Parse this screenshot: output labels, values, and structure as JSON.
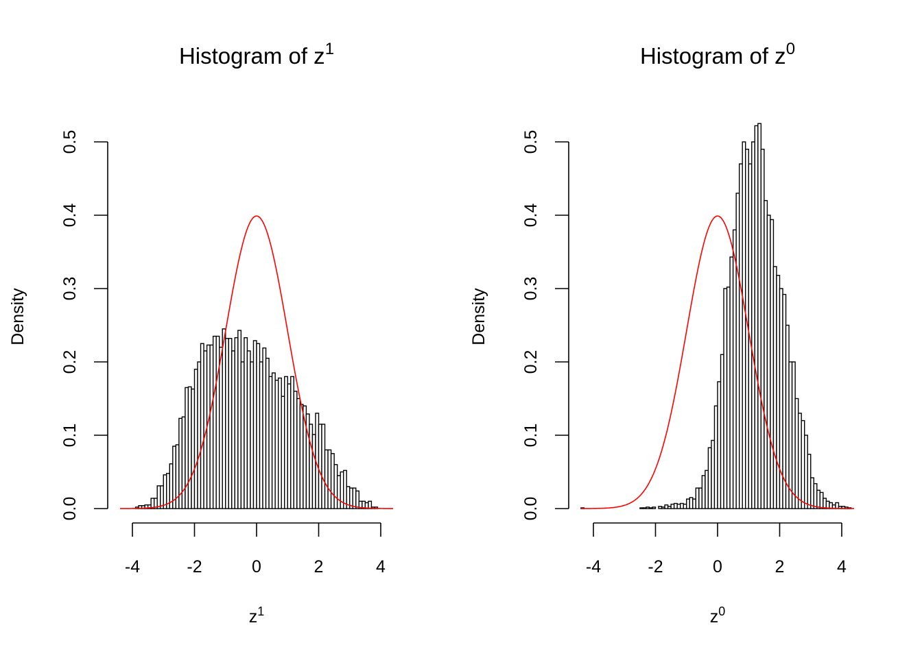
{
  "chart_data": [
    {
      "type": "histogram",
      "title": {
        "text": "Histogram of z",
        "sup": "1"
      },
      "xlabel": {
        "text": "z",
        "sup": "1"
      },
      "ylabel": "Density",
      "xlim": [
        -4.4,
        4.4
      ],
      "ylim": [
        0,
        0.5
      ],
      "x_ticks": [
        -4,
        -2,
        0,
        2,
        4
      ],
      "x_tick_labels": [
        "-4",
        "-2",
        "0",
        "2",
        "4"
      ],
      "y_ticks": [
        0,
        0.1,
        0.2,
        0.3,
        0.4,
        0.5
      ],
      "y_tick_labels": [
        "0.0",
        "0.1",
        "0.2",
        "0.3",
        "0.4",
        "0.5"
      ],
      "bins": {
        "start": -3.9,
        "width": 0.1,
        "densities": [
          0.002,
          0.004,
          0.004,
          0.005,
          0.005,
          0.014,
          0.014,
          0.031,
          0.031,
          0.046,
          0.048,
          0.061,
          0.085,
          0.087,
          0.123,
          0.125,
          0.165,
          0.166,
          0.163,
          0.19,
          0.2,
          0.225,
          0.215,
          0.223,
          0.223,
          0.235,
          0.235,
          0.22,
          0.245,
          0.232,
          0.232,
          0.215,
          0.233,
          0.243,
          0.2,
          0.233,
          0.215,
          0.2,
          0.229,
          0.225,
          0.2,
          0.219,
          0.205,
          0.18,
          0.185,
          0.175,
          0.178,
          0.153,
          0.18,
          0.17,
          0.18,
          0.16,
          0.15,
          0.142,
          0.14,
          0.129,
          0.115,
          0.101,
          0.13,
          0.115,
          0.115,
          0.08,
          0.08,
          0.075,
          0.06,
          0.045,
          0.05,
          0.052,
          0.03,
          0.028,
          0.028,
          0.024,
          0.01,
          0.01,
          0.008,
          0.01,
          0.002,
          0.002
        ]
      },
      "curve": {
        "type": "normal-density",
        "mean": 0,
        "sd": 1,
        "x_range": [
          -4.4,
          4.4
        ],
        "color": "#ff0000"
      }
    },
    {
      "type": "histogram",
      "title": {
        "text": "Histogram of z",
        "sup": "0"
      },
      "xlabel": {
        "text": "z",
        "sup": "0"
      },
      "ylabel": "Density",
      "xlim": [
        -4.4,
        4.4
      ],
      "ylim": [
        0,
        0.5
      ],
      "x_ticks": [
        -4,
        -2,
        0,
        2,
        4
      ],
      "x_tick_labels": [
        "-4",
        "-2",
        "0",
        "2",
        "4"
      ],
      "y_ticks": [
        0,
        0.1,
        0.2,
        0.3,
        0.4,
        0.5
      ],
      "y_tick_labels": [
        "0.0",
        "0.1",
        "0.2",
        "0.3",
        "0.4",
        "0.5"
      ],
      "bins": {
        "start": -4.4,
        "width": 0.1,
        "densities": [
          0.001,
          0,
          0,
          0,
          0,
          0,
          0,
          0,
          0,
          0,
          0,
          0,
          0,
          0,
          0,
          0,
          0,
          0,
          0,
          0.001,
          0.001,
          0.002,
          0.001,
          0.002,
          0,
          0.003,
          0.002,
          0.005,
          0.003,
          0.006,
          0.007,
          0.006,
          0.007,
          0.006,
          0.013,
          0.015,
          0.013,
          0.028,
          0.028,
          0.045,
          0.052,
          0.083,
          0.093,
          0.14,
          0.173,
          0.21,
          0.3,
          0.302,
          0.343,
          0.38,
          0.43,
          0.47,
          0.5,
          0.49,
          0.47,
          0.5,
          0.522,
          0.525,
          0.49,
          0.42,
          0.4,
          0.394,
          0.33,
          0.318,
          0.3,
          0.292,
          0.25,
          0.2,
          0.2,
          0.15,
          0.13,
          0.12,
          0.1,
          0.074,
          0.042,
          0.034,
          0.025,
          0.022,
          0.014,
          0.01,
          0.008,
          0.005,
          0.008,
          0.003,
          0.003,
          0.002,
          0.001
        ]
      },
      "curve": {
        "type": "normal-density",
        "mean": 0,
        "sd": 1,
        "x_range": [
          -4.4,
          4.4
        ],
        "color": "#ff0000"
      }
    }
  ]
}
